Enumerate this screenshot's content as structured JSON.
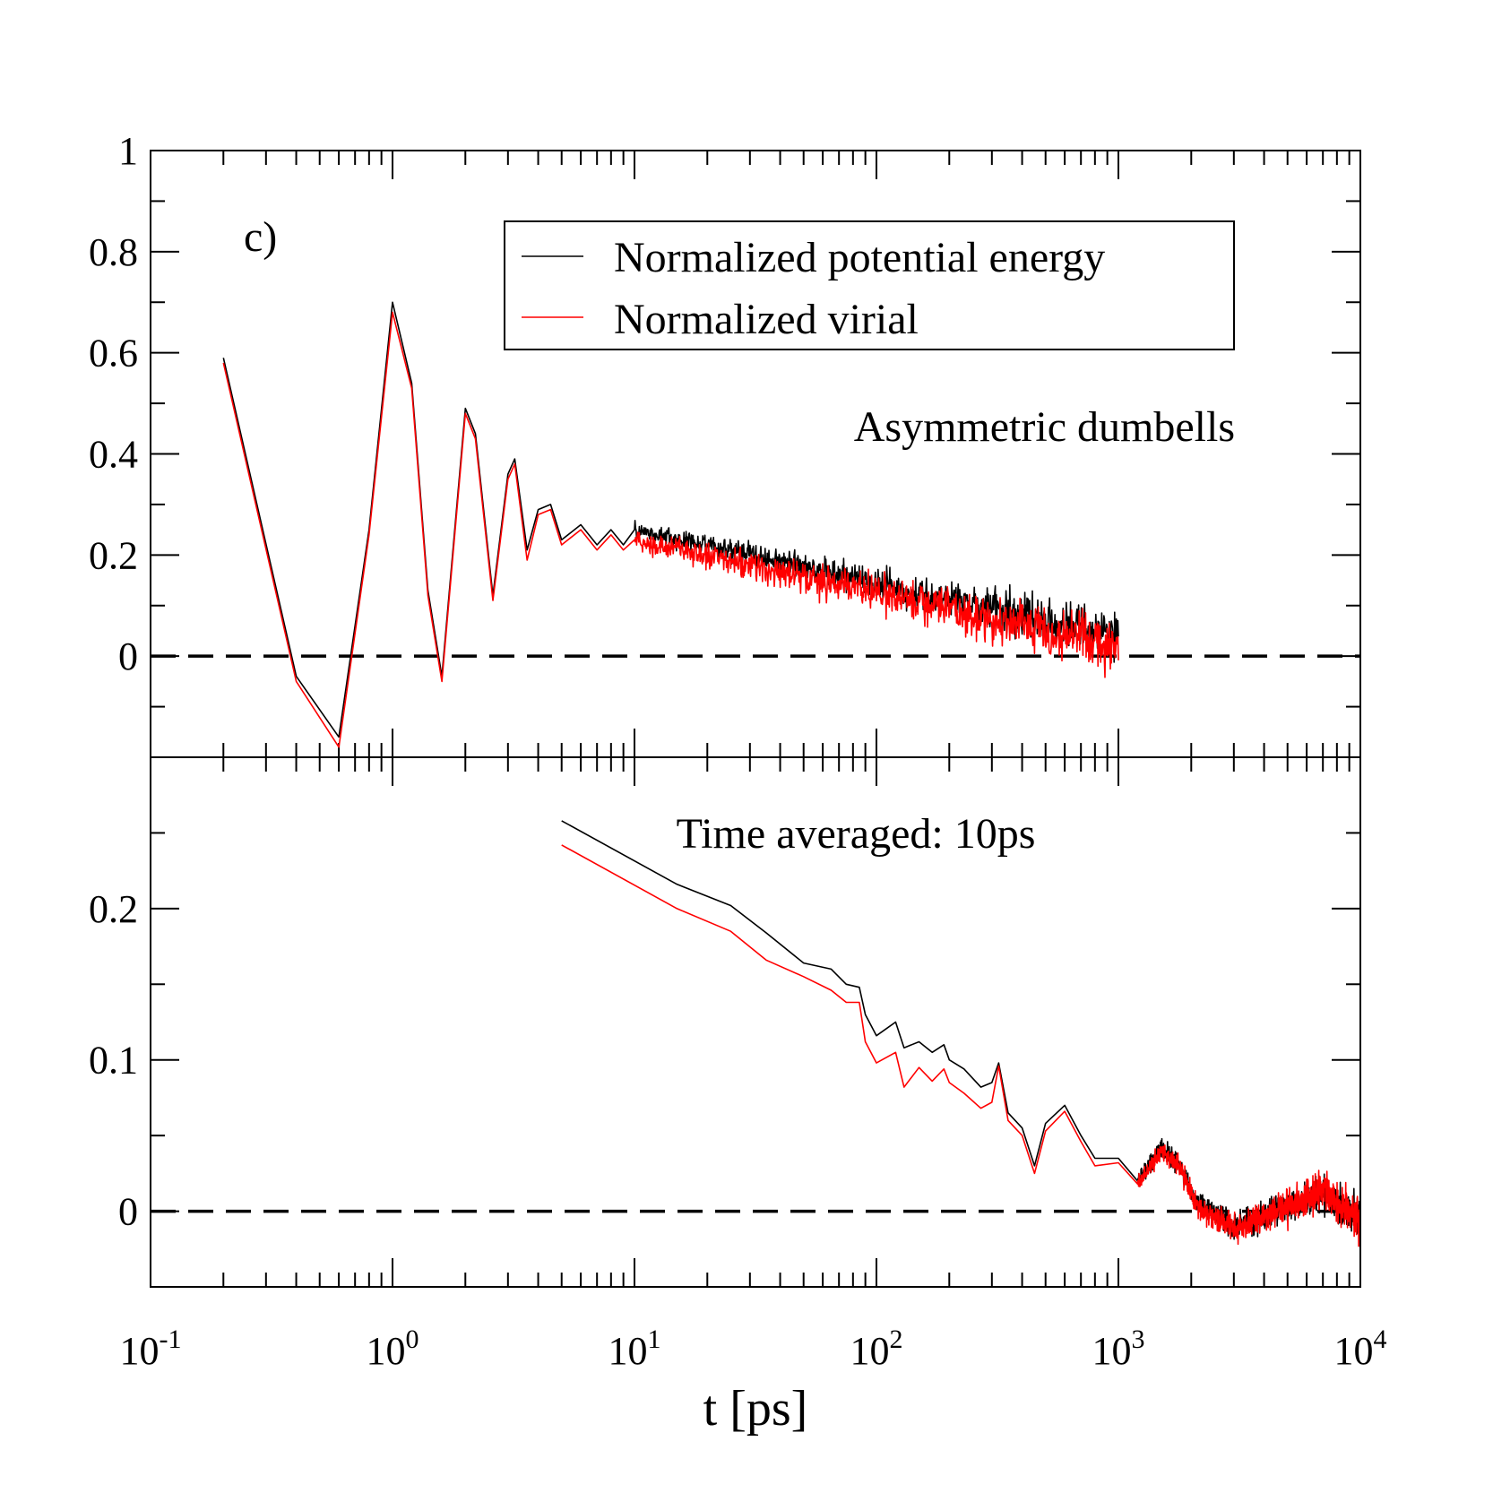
{
  "chart_data": [
    {
      "type": "line",
      "panel": "top",
      "panel_label": "c)",
      "annotation": "Asymmetric dumbells",
      "xscale": "log",
      "xlim": [
        0.1,
        10000
      ],
      "ylim": [
        -0.2,
        1.0
      ],
      "yticks": [
        0,
        0.2,
        0.4,
        0.6,
        0.8,
        1
      ],
      "ytick_labels": [
        "0",
        "0.2",
        "0.4",
        "0.6",
        "0.8",
        "1"
      ],
      "reference_line": 0,
      "legend": {
        "location": "top-right",
        "entries": [
          "Normalized potential energy",
          "Normalized virial"
        ]
      },
      "series": [
        {
          "name": "Normalized potential energy",
          "color": "#000000",
          "x": [
            0.2,
            0.4,
            0.6,
            0.8,
            1.0,
            1.2,
            1.4,
            1.6,
            2.0,
            2.2,
            2.6,
            3.0,
            3.2,
            3.6,
            4.0,
            4.5,
            5,
            6,
            7,
            8,
            9,
            10,
            1000
          ],
          "y": [
            0.59,
            -0.04,
            -0.16,
            0.25,
            0.7,
            0.54,
            0.13,
            -0.04,
            0.49,
            0.44,
            0.12,
            0.36,
            0.39,
            0.21,
            0.29,
            0.3,
            0.23,
            0.26,
            0.22,
            0.25,
            0.22,
            0.25,
            0.04
          ],
          "noise_start_x": 10,
          "noise_end_x": 1000,
          "noise_amplitude": [
            0.025,
            0.07
          ]
        },
        {
          "name": "Normalized virial",
          "color": "#ff0000",
          "x": [
            0.2,
            0.4,
            0.6,
            0.8,
            1.0,
            1.2,
            1.4,
            1.6,
            2.0,
            2.2,
            2.6,
            3.0,
            3.2,
            3.6,
            4.0,
            4.5,
            5,
            6,
            7,
            8,
            9,
            10,
            1000
          ],
          "y": [
            0.58,
            -0.05,
            -0.18,
            0.24,
            0.68,
            0.53,
            0.12,
            -0.05,
            0.48,
            0.43,
            0.11,
            0.35,
            0.38,
            0.19,
            0.28,
            0.29,
            0.22,
            0.25,
            0.21,
            0.24,
            0.21,
            0.23,
            0.02
          ],
          "noise_start_x": 10,
          "noise_end_x": 1000,
          "noise_amplitude": [
            0.03,
            0.08
          ]
        }
      ]
    },
    {
      "type": "line",
      "panel": "bottom",
      "annotation": "Time averaged: 10ps",
      "xscale": "log",
      "xlim": [
        0.1,
        10000
      ],
      "xlabel": "t [ps]",
      "xticks": [
        0.1,
        1,
        10,
        100,
        1000,
        10000
      ],
      "xtick_labels": [
        {
          "base": "10",
          "exp": "-1"
        },
        {
          "base": "10",
          "exp": "0"
        },
        {
          "base": "10",
          "exp": "1"
        },
        {
          "base": "10",
          "exp": "2"
        },
        {
          "base": "10",
          "exp": "3"
        },
        {
          "base": "10",
          "exp": "4"
        }
      ],
      "ylim": [
        -0.05,
        0.3
      ],
      "yticks": [
        0,
        0.1,
        0.2
      ],
      "ytick_labels": [
        "0",
        "0.1",
        "0.2"
      ],
      "reference_line": 0,
      "series": [
        {
          "name": "Normalized potential energy",
          "color": "#000000",
          "x": [
            5,
            15,
            25,
            35,
            50,
            65,
            75,
            85,
            90,
            100,
            120,
            130,
            150,
            170,
            190,
            200,
            230,
            270,
            300,
            320,
            350,
            400,
            450,
            500,
            600,
            700,
            800,
            1000,
            1200,
            1500,
            1800,
            2100,
            3000,
            5000,
            7000,
            10000
          ],
          "y": [
            0.258,
            0.216,
            0.202,
            0.184,
            0.164,
            0.16,
            0.15,
            0.148,
            0.13,
            0.116,
            0.125,
            0.108,
            0.112,
            0.105,
            0.11,
            0.1,
            0.094,
            0.082,
            0.085,
            0.098,
            0.065,
            0.055,
            0.03,
            0.058,
            0.07,
            0.05,
            0.035,
            0.035,
            0.02,
            0.042,
            0.03,
            0.005,
            -0.01,
            0.003,
            0.012,
            -0.005
          ],
          "noise_start_x": 1200,
          "noise_end_x": 10000,
          "noise_amplitude": [
            0.008,
            0.02
          ]
        },
        {
          "name": "Normalized virial",
          "color": "#ff0000",
          "x": [
            5,
            15,
            25,
            35,
            50,
            65,
            75,
            85,
            90,
            100,
            120,
            130,
            150,
            170,
            190,
            200,
            230,
            270,
            300,
            320,
            350,
            400,
            450,
            500,
            600,
            700,
            800,
            1000,
            1200,
            1500,
            1800,
            2100,
            3000,
            5000,
            7000,
            10000
          ],
          "y": [
            0.242,
            0.2,
            0.185,
            0.166,
            0.155,
            0.146,
            0.138,
            0.138,
            0.112,
            0.098,
            0.105,
            0.082,
            0.095,
            0.086,
            0.094,
            0.085,
            0.078,
            0.068,
            0.072,
            0.096,
            0.06,
            0.05,
            0.025,
            0.053,
            0.066,
            0.046,
            0.03,
            0.032,
            0.018,
            0.04,
            0.03,
            0.003,
            -0.012,
            0.002,
            0.013,
            -0.006
          ],
          "noise_start_x": 1200,
          "noise_end_x": 10000,
          "noise_amplitude": [
            0.008,
            0.022
          ]
        }
      ]
    }
  ]
}
